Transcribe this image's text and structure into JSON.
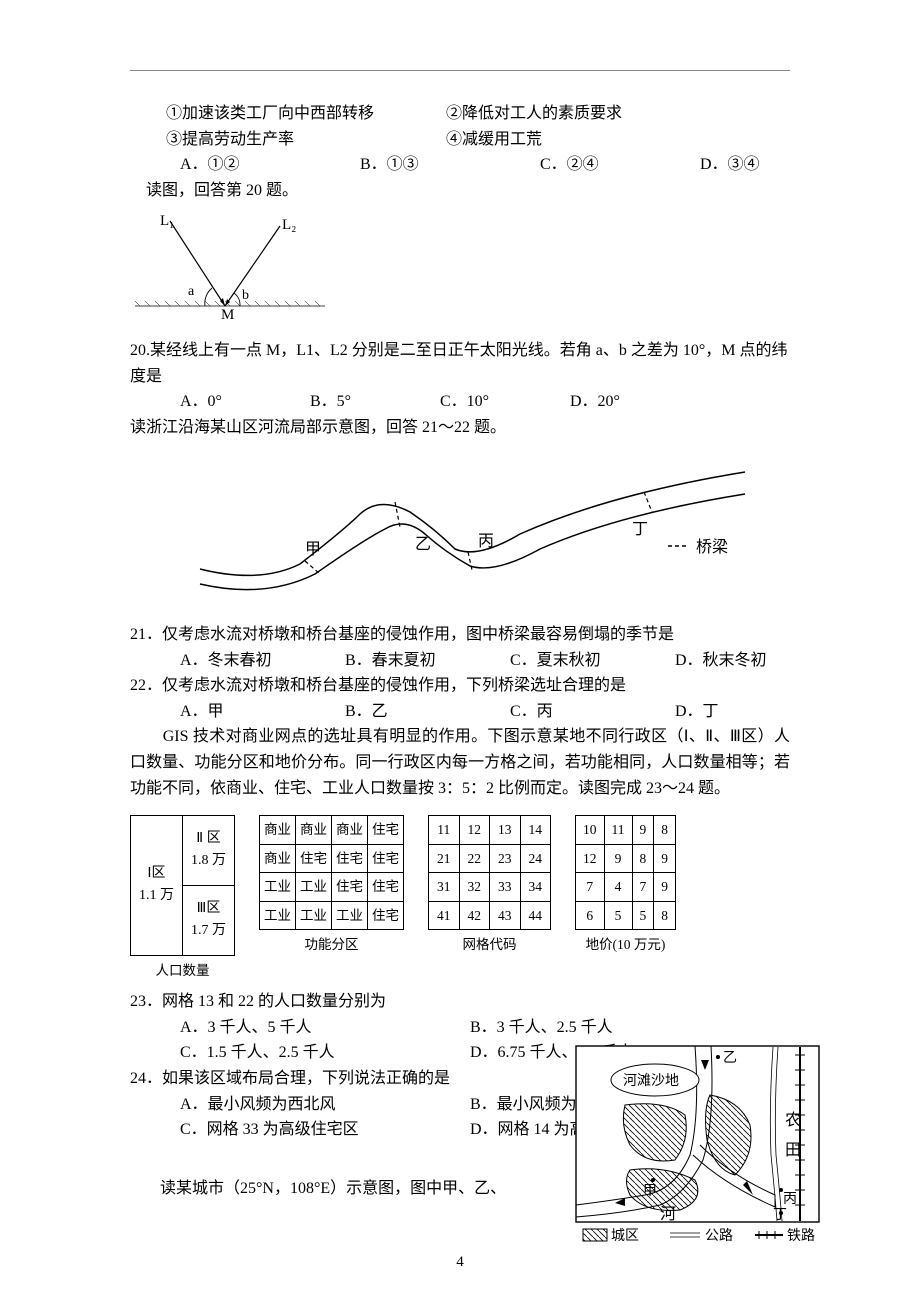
{
  "intro": {
    "stem1": "①加速该类工厂向中西部转移",
    "stem2": "②降低对工人的素质要求",
    "stem3": "③提高劳动生产率",
    "stem4": "④减缓用工荒",
    "opts": {
      "A": "A．①②",
      "B": "B．①③",
      "C": "C．②④",
      "D": "D．③④"
    },
    "readfig": "读图，回答第 20 题。"
  },
  "fig_solstice": {
    "L1": "L₁",
    "L2": "L₂",
    "a": "a",
    "b": "b",
    "M": "M",
    "colors": {
      "stroke": "#000000"
    }
  },
  "q20": {
    "stem": "20.某经线上有一点 M，L1、L2 分别是二至日正午太阳光线。若角 a、b 之差为 10°，M 点的纬度是",
    "opts": {
      "A": "A．0°",
      "B": "B．5°",
      "C": "C．10°",
      "D": "D．20°"
    }
  },
  "read_river": "读浙江沿海某山区河流局部示意图，回答 21～22 题。",
  "fig_river": {
    "labels": {
      "jia": "甲",
      "yi": "乙",
      "bing": "丙",
      "ding": "丁",
      "bridge": "桥梁"
    },
    "colors": {
      "stroke": "#000000"
    }
  },
  "q21": {
    "stem": "21．仅考虑水流对桥墩和桥台基座的侵蚀作用，图中桥梁最容易倒塌的季节是",
    "opts": {
      "A": "A．冬末春初",
      "B": "B．春末夏初",
      "C": "C．夏末秋初",
      "D": "D．秋末冬初"
    }
  },
  "q22": {
    "stem": "22．仅考虑水流对桥墩和桥台基座的侵蚀作用，下列桥梁选址合理的是",
    "opts": {
      "A": "A．甲",
      "B": "B．乙",
      "C": "C．丙",
      "D": "D．丁"
    }
  },
  "gis_intro": "　　GIS 技术对商业网点的选址具有明显的作用。下图示意某地不同行政区（Ⅰ、Ⅱ、Ⅲ区）人口数量、功能分区和地价分布。同一行政区内每一方格之间，若功能相同，人口数量相等；若功能不同，依商业、住宅、工业人口数量按 3：5：2 比例而定。读图完成 23～24 题。",
  "tables": {
    "pop": {
      "cells": {
        "I": "Ⅰ区\n1.1 万",
        "II": "Ⅱ 区\n1.8 万",
        "III": "Ⅲ区\n1.7 万"
      },
      "caption": "人口数量"
    },
    "func": {
      "rows": [
        [
          "商业",
          "商业",
          "商业",
          "住宅"
        ],
        [
          "商业",
          "住宅",
          "住宅",
          "住宅"
        ],
        [
          "工业",
          "工业",
          "住宅",
          "住宅"
        ],
        [
          "工业",
          "工业",
          "工业",
          "住宅"
        ]
      ],
      "caption": "功能分区"
    },
    "code": {
      "rows": [
        [
          "11",
          "12",
          "13",
          "14"
        ],
        [
          "21",
          "22",
          "23",
          "24"
        ],
        [
          "31",
          "32",
          "33",
          "34"
        ],
        [
          "41",
          "42",
          "43",
          "44"
        ]
      ],
      "caption": "网格代码"
    },
    "price": {
      "rows": [
        [
          "10",
          "11",
          "9",
          "8"
        ],
        [
          "12",
          "9",
          "8",
          "9"
        ],
        [
          "7",
          "4",
          "7",
          "9"
        ],
        [
          "6",
          "5",
          "5",
          "8"
        ]
      ],
      "caption": "地价(10 万元)"
    }
  },
  "q23": {
    "stem": "23．网格 13 和 22 的人口数量分别为",
    "opts": {
      "A": "A．3 千人、5 千人",
      "B": "B．3 千人、2.5 千人",
      "C": "C．1.5 千人、2.5 千人",
      "D": "D．6.75 千人、5.5 千人"
    }
  },
  "q24": {
    "stem": "24．如果该区域布局合理，下列说法正确的是",
    "opts": {
      "A": "A．最小风频为西北风",
      "B": "B．最小风频为东北风",
      "C": "C．网格 33 为高级住宅区",
      "D": "D．网格 14 为高级住宅区"
    }
  },
  "footer_stem": "读某城市（25°N，108°E）示意图，图中甲、乙、",
  "city_fig": {
    "labels": {
      "sand": "河滩沙地",
      "nong": "农",
      "tian": "田",
      "he": "河",
      "yi": "乙",
      "jia": "甲",
      "bing": "丙",
      "ding": "丁",
      "city": "城区",
      "road": "公路",
      "rail": "铁路"
    }
  },
  "page_num": "4"
}
